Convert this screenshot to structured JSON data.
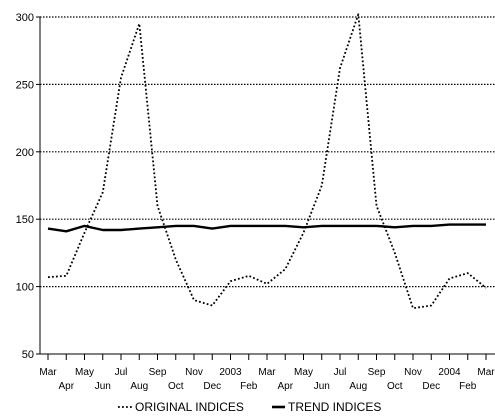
{
  "chart_data": {
    "type": "line",
    "title": "",
    "xlabel": "",
    "ylabel": "",
    "ylim": [
      50,
      300
    ],
    "yticks": [
      50,
      100,
      150,
      200,
      250,
      300
    ],
    "grid": "horizontal-dotted",
    "legend_position": "bottom",
    "x_tick_labels": [
      "Mar",
      "Apr",
      "May",
      "Jun",
      "Jul",
      "Aug",
      "Sep",
      "Oct",
      "Nov",
      "Dec",
      "2003",
      "Feb",
      "Mar",
      "Apr",
      "May",
      "Jun",
      "Jul",
      "Aug",
      "Sep",
      "Oct",
      "Nov",
      "Dec",
      "2004",
      "Feb",
      "Mar"
    ],
    "series": [
      {
        "name": "ORIGINAL INDICES",
        "style": "dotted",
        "color": "#000000",
        "values": [
          107,
          108,
          140,
          170,
          255,
          295,
          160,
          120,
          90,
          86,
          104,
          108,
          102,
          113,
          140,
          175,
          262,
          302,
          160,
          125,
          84,
          86,
          106,
          110,
          99
        ]
      },
      {
        "name": "TREND INDICES",
        "style": "solid-thick",
        "color": "#000000",
        "values": [
          143,
          141,
          145,
          142,
          142,
          143,
          144,
          145,
          145,
          143,
          145,
          145,
          145,
          145,
          144,
          145,
          145,
          145,
          145,
          144,
          145,
          145,
          146,
          146,
          146
        ]
      }
    ]
  }
}
